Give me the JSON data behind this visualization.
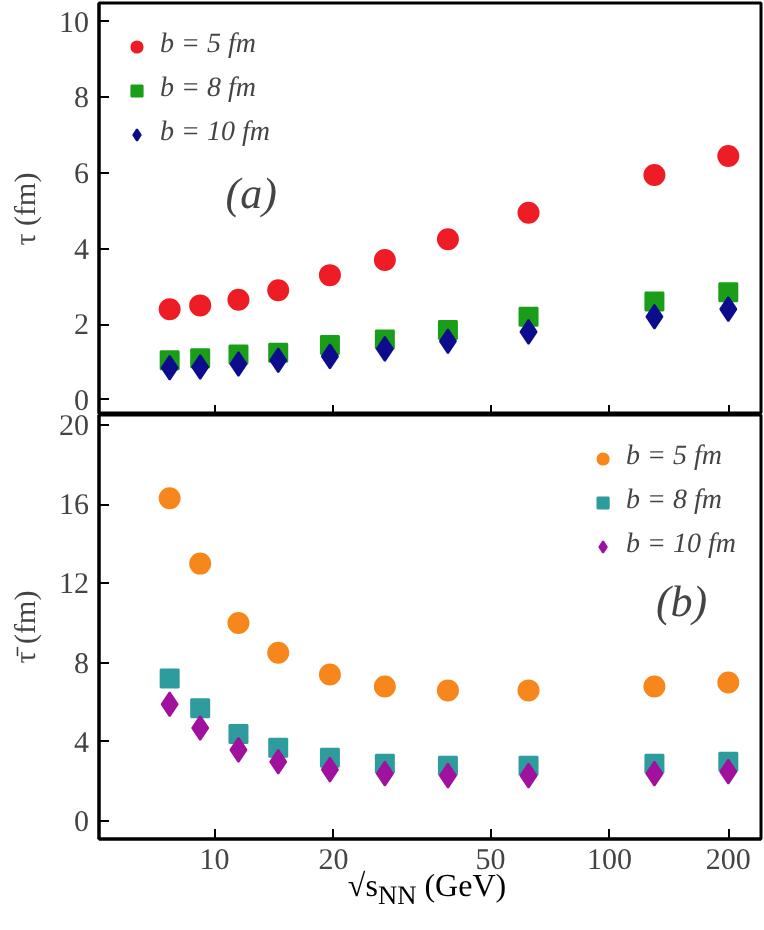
{
  "chart_data": [
    {
      "type": "scatter",
      "log": "x",
      "ylabel": "τ (fm)",
      "x": [
        7.7,
        9.2,
        11.5,
        14.5,
        19.6,
        27,
        39,
        62.4,
        130,
        200
      ],
      "xlim": [
        5.1,
        242
      ],
      "xticks": [
        10,
        20,
        50,
        100,
        200
      ],
      "ylim": [
        -0.4,
        10.5
      ],
      "yticks": [
        0,
        2,
        4,
        6,
        8,
        10
      ],
      "tick_labels": "y",
      "legend": "top left",
      "grid": false,
      "annotations": [
        "(a)"
      ],
      "series": [
        {
          "name": "b = 5 fm",
          "color": "#ee1c25",
          "marker": "circle",
          "values": [
            2.4,
            2.5,
            2.65,
            2.9,
            3.3,
            3.7,
            4.25,
            4.95,
            5.95,
            6.45
          ]
        },
        {
          "name": "b = 8 fm",
          "color": "#1a9e1a",
          "marker": "square",
          "values": [
            1.05,
            1.1,
            1.2,
            1.25,
            1.45,
            1.6,
            1.85,
            2.2,
            2.6,
            2.85
          ]
        },
        {
          "name": "b = 10 fm",
          "color": "#0c0c8c",
          "marker": "diamond",
          "values": [
            0.85,
            0.87,
            0.95,
            1.05,
            1.15,
            1.35,
            1.55,
            1.8,
            2.2,
            2.4
          ]
        }
      ]
    },
    {
      "type": "scatter",
      "log": "x",
      "ylabel": "τ̄ (fm)",
      "xlabel": "√s$_{NN}$ (GeV)",
      "x": [
        7.7,
        9.2,
        11.5,
        14.5,
        19.6,
        27,
        39,
        62.4,
        130,
        200
      ],
      "xlim": [
        5.1,
        242
      ],
      "xticks": [
        10,
        20,
        50,
        100,
        200
      ],
      "ylim": [
        -0.9,
        20.5
      ],
      "yticks": [
        0,
        4,
        8,
        12,
        16,
        20
      ],
      "legend": "top right",
      "grid": false,
      "annotations": [
        "(b)"
      ],
      "series": [
        {
          "name": "b = 5 fm",
          "color": "#f7861c",
          "marker": "circle",
          "values": [
            16.3,
            13.0,
            10.0,
            8.5,
            7.4,
            6.8,
            6.6,
            6.6,
            6.8,
            7.0
          ]
        },
        {
          "name": "b = 8 fm",
          "color": "#2e9c9c",
          "marker": "square",
          "values": [
            7.2,
            5.7,
            4.4,
            3.7,
            3.2,
            2.9,
            2.8,
            2.8,
            2.9,
            3.0
          ]
        },
        {
          "name": "b = 10 fm",
          "color": "#a0119e",
          "marker": "diamond",
          "values": [
            5.9,
            4.7,
            3.6,
            3.0,
            2.6,
            2.4,
            2.3,
            2.3,
            2.4,
            2.5
          ]
        }
      ]
    }
  ]
}
